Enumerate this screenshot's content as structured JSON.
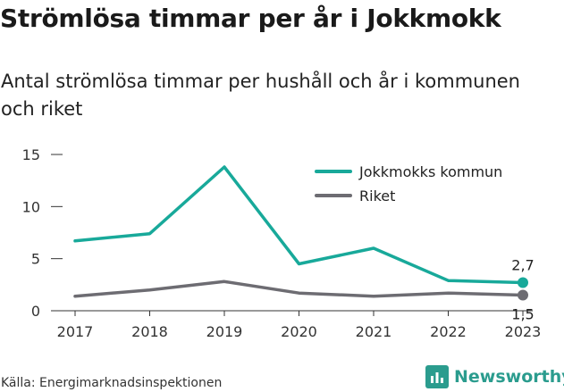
{
  "title": "Strömlösa timmar per år i Jokkmokk",
  "subtitle": "Antal strömlösa timmar per hushåll och år i kommunen och riket",
  "source": "Källa: Energimarknadsinspektionen",
  "brand": "Newsworthy",
  "colors": {
    "kommun": "#18a99a",
    "riket": "#6d6c72",
    "brand": "#2b9c8e"
  },
  "chart_data": {
    "type": "line",
    "x": [
      "2017",
      "2018",
      "2019",
      "2020",
      "2021",
      "2022",
      "2023"
    ],
    "ylim": [
      0,
      15
    ],
    "yticks": [
      0,
      5,
      10,
      15
    ],
    "grid": false,
    "legend_position": "top-right",
    "series": [
      {
        "name": "Jokkmokks kommun",
        "values": [
          6.7,
          7.4,
          13.8,
          4.5,
          6.0,
          2.9,
          2.7
        ],
        "last_label": "2,7"
      },
      {
        "name": "Riket",
        "values": [
          1.4,
          2.0,
          2.8,
          1.7,
          1.4,
          1.7,
          1.5
        ],
        "last_label": "1,5"
      }
    ]
  }
}
